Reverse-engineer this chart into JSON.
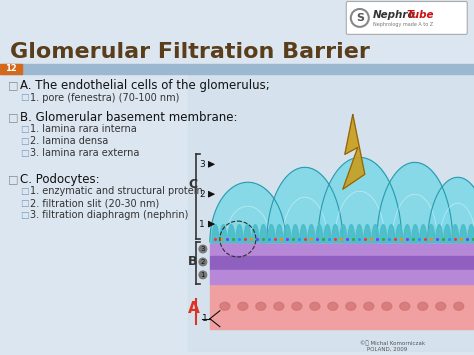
{
  "title": "Glomerular Filtration Barrier",
  "title_color": "#5A3E1B",
  "bg_color": "#dce6f0",
  "slide_number": "12",
  "header_bar_color": "#9BB8D0",
  "slide_num_color": "#D4691E",
  "section_A_header": "A. The endothelial cells of the glomerulus;",
  "section_A_items": [
    "1. pore (fenestra) (70-100 nm)"
  ],
  "section_B_header": "B. Glomerular basement membrane:",
  "section_B_items": [
    "1. lamina rara interna",
    "2. lamina densa",
    "3. lamina rara externa"
  ],
  "section_C_header": "C. Podocytes:",
  "section_C_items": [
    "1. enzymatic and structural protein",
    "2. filtration slit (20-30 nm)",
    "3. filtration diaphragm (nephrin)"
  ],
  "logo_box_color": "#ffffff",
  "nephro_color": "#333333",
  "tube_color": "#cc1111",
  "teal_light": "#7ED8E8",
  "teal_mid": "#4BBCC8",
  "teal_dark": "#2A9AAA",
  "purple_light": "#C890E0",
  "purple_mid": "#B070D0",
  "purple_dark": "#8050A0",
  "pink_color": "#F0A0A0",
  "gold_color": "#C8A020"
}
